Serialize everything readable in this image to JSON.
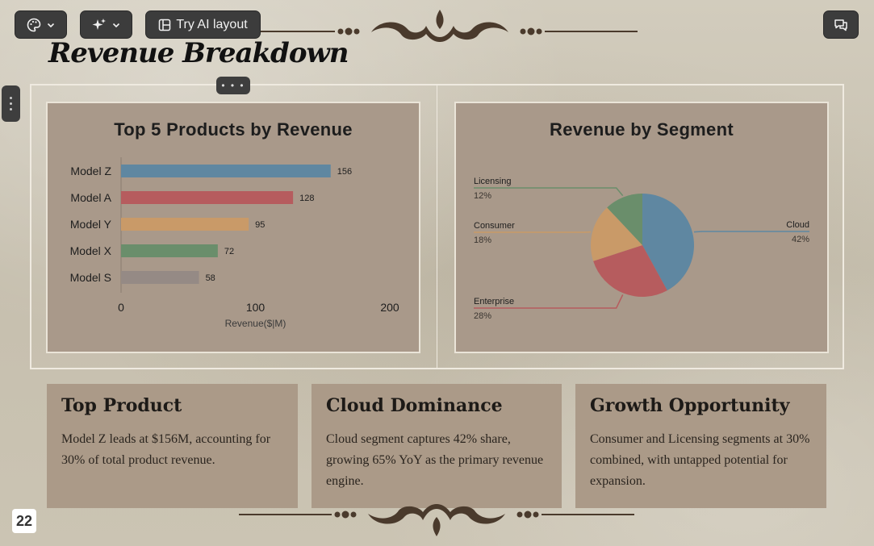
{
  "toolbar": {
    "theme_icon": "palette-icon",
    "ai_icon": "sparkles-icon",
    "layout_label": "Try AI layout",
    "layout_icon": "layout-icon",
    "comment_icon": "comment-icon"
  },
  "slide": {
    "title": "Revenue Breakdown",
    "page_number": "22"
  },
  "colors": {
    "bar_blue": "#5f87a1",
    "bar_red": "#b65c5e",
    "bar_orange": "#c99a68",
    "bar_green": "#6a8e6b",
    "bar_gray": "#958a85",
    "panel_bg": "#a9998a"
  },
  "bar_panel": {
    "title": "Top 5 Products by Revenue"
  },
  "pie_panel": {
    "title": "Revenue by Segment"
  },
  "chart_data": [
    {
      "type": "bar",
      "orientation": "horizontal",
      "title": "Top 5 Products by Revenue",
      "categories": [
        "Model Z",
        "Model A",
        "Model Y",
        "Model X",
        "Model S"
      ],
      "values": [
        156,
        128,
        95,
        72,
        58
      ],
      "value_labels": [
        "156",
        "128",
        "95",
        "72",
        "58"
      ],
      "xlabel": "Revenue($|M)",
      "ylabel": "",
      "xlim": [
        0,
        200
      ],
      "xticks": [
        "0",
        "100",
        "200"
      ],
      "grid": false,
      "legend": "none"
    },
    {
      "type": "pie",
      "title": "Revenue by Segment",
      "labels": [
        "Cloud",
        "Enterprise",
        "Consumer",
        "Licensing"
      ],
      "values": [
        42,
        28,
        18,
        12
      ],
      "value_labels": [
        "42%",
        "28%",
        "18%",
        "12%"
      ],
      "legend": "none"
    }
  ],
  "cards": [
    {
      "title": "Top Product",
      "body": "Model Z leads at $156M, accounting for 30% of total product revenue."
    },
    {
      "title": "Cloud Dominance",
      "body": "Cloud segment captures 42% share, growing 65% YoY as the primary revenue engine."
    },
    {
      "title": "Growth Opportunity",
      "body": "Consumer and Licensing segments at 30% combined, with untapped potential for expansion."
    }
  ]
}
